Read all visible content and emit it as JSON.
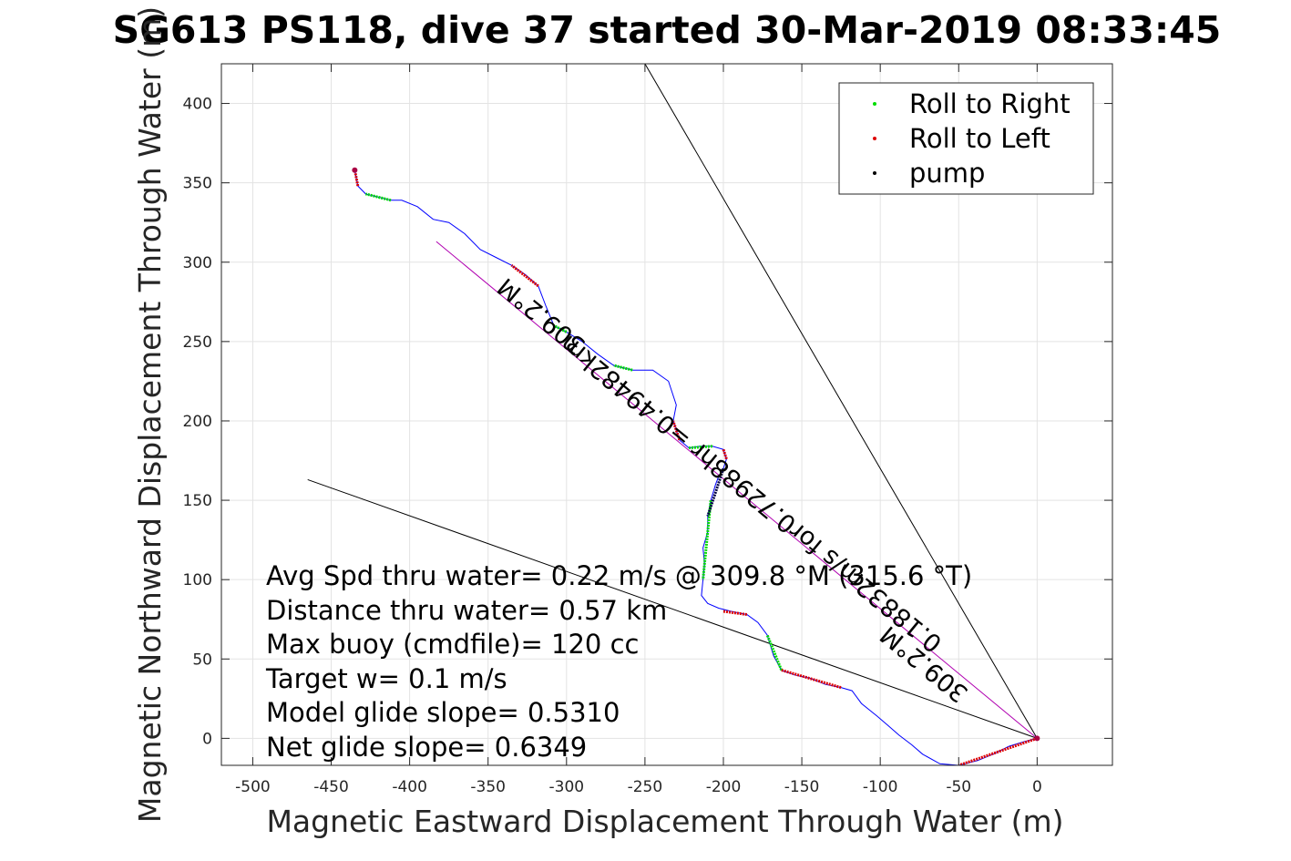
{
  "chart_data": {
    "type": "line",
    "title": "SG613 PS118, dive 37 started 30-Mar-2019 08:33:45",
    "xlabel": "Magnetic Eastward Displacement Through Water (m)",
    "ylabel": "Magnetic Northward Displacement Through Water (m)",
    "xlim": [
      -520,
      48
    ],
    "ylim": [
      -17,
      425
    ],
    "xticks": [
      -500,
      -450,
      -400,
      -350,
      -300,
      -250,
      -200,
      -150,
      -100,
      -50,
      0
    ],
    "yticks": [
      0,
      50,
      100,
      150,
      200,
      250,
      300,
      350,
      400
    ],
    "grid": true,
    "legend_placement": "top-right",
    "legend": [
      {
        "label": "Roll to Right",
        "color": "#00dd00"
      },
      {
        "label": "Roll to Left",
        "color": "#dd0000"
      },
      {
        "label": "pump",
        "color": "#000000"
      }
    ],
    "track": [
      [
        0,
        0
      ],
      [
        -8,
        -2
      ],
      [
        -18,
        -5
      ],
      [
        -28,
        -10
      ],
      [
        -38,
        -14
      ],
      [
        -50,
        -17
      ],
      [
        -62,
        -16
      ],
      [
        -73,
        -10
      ],
      [
        -80,
        -4
      ],
      [
        -88,
        2
      ],
      [
        -95,
        8
      ],
      [
        -102,
        14
      ],
      [
        -112,
        22
      ],
      [
        -118,
        30
      ],
      [
        -125,
        32
      ],
      [
        -135,
        34
      ],
      [
        -145,
        38
      ],
      [
        -155,
        40
      ],
      [
        -163,
        43
      ],
      [
        -168,
        52
      ],
      [
        -172,
        65
      ],
      [
        -178,
        73
      ],
      [
        -185,
        78
      ],
      [
        -195,
        80
      ],
      [
        -203,
        82
      ],
      [
        -210,
        85
      ],
      [
        -214,
        90
      ],
      [
        -213,
        100
      ],
      [
        -212,
        110
      ],
      [
        -213,
        120
      ],
      [
        -210,
        130
      ],
      [
        -210,
        140
      ],
      [
        -208,
        150
      ],
      [
        -205,
        160
      ],
      [
        -203,
        165
      ],
      [
        -200,
        170
      ],
      [
        -198,
        176
      ],
      [
        -200,
        182
      ],
      [
        -207,
        184
      ],
      [
        -215,
        184
      ],
      [
        -222,
        183
      ],
      [
        -228,
        188
      ],
      [
        -232,
        200
      ],
      [
        -230,
        210
      ],
      [
        -235,
        225
      ],
      [
        -245,
        232
      ],
      [
        -258,
        232
      ],
      [
        -270,
        235
      ],
      [
        -280,
        242
      ],
      [
        -290,
        250
      ],
      [
        -300,
        256
      ],
      [
        -308,
        260
      ],
      [
        -313,
        272
      ],
      [
        -318,
        285
      ],
      [
        -326,
        292
      ],
      [
        -335,
        298
      ],
      [
        -345,
        303
      ],
      [
        -355,
        308
      ],
      [
        -365,
        318
      ],
      [
        -375,
        325
      ],
      [
        -385,
        327
      ],
      [
        -395,
        335
      ],
      [
        -405,
        339
      ],
      [
        -412,
        339
      ],
      [
        -420,
        341
      ],
      [
        -428,
        343
      ],
      [
        -433,
        348
      ],
      [
        -435,
        358
      ]
    ],
    "roll_right_segments": [
      [
        [
          -412,
          339
        ],
        [
          -428,
          343
        ]
      ],
      [
        [
          -300,
          256
        ],
        [
          -308,
          260
        ]
      ],
      [
        [
          -258,
          232
        ],
        [
          -270,
          235
        ]
      ],
      [
        [
          -207,
          184
        ],
        [
          -222,
          183
        ]
      ],
      [
        [
          -208,
          150
        ],
        [
          -213,
          100
        ]
      ],
      [
        [
          -163,
          43
        ],
        [
          -172,
          65
        ]
      ]
    ],
    "roll_left_segments": [
      [
        [
          0,
          0
        ],
        [
          -50,
          -17
        ]
      ],
      [
        [
          -125,
          32
        ],
        [
          -163,
          43
        ]
      ],
      [
        [
          -185,
          78
        ],
        [
          -200,
          80
        ]
      ],
      [
        [
          -198,
          176
        ],
        [
          -200,
          182
        ]
      ],
      [
        [
          -228,
          188
        ],
        [
          -232,
          200
        ]
      ],
      [
        [
          -318,
          285
        ],
        [
          -335,
          298
        ]
      ],
      [
        [
          -433,
          348
        ],
        [
          -435,
          358
        ]
      ]
    ],
    "pump_segments": [
      [
        [
          -200,
          170
        ],
        [
          -210,
          140
        ]
      ]
    ],
    "reference_lines": [
      {
        "from": [
          0,
          0
        ],
        "to": [
          -250,
          425
        ],
        "color": "#000000"
      },
      {
        "from": [
          0,
          0
        ],
        "to": [
          -465,
          163
        ],
        "color": "#000000"
      },
      {
        "from": [
          0,
          0
        ],
        "to": [
          -383,
          313
        ],
        "color": "#b000b0"
      }
    ],
    "annotations": [
      "Avg Spd thru water=  0.22 m/s @ 309.8 °M (315.6 °T)",
      "Distance thru water=  0.57 km",
      "Max buoy (cmdfile)= 120 cc",
      "Target w= 0.1 m/s",
      "Model glide slope= 0.5310",
      "Net glide slope= 0.6349"
    ],
    "rotated_labels": [
      "309.2°M",
      "0.18832m/s for0.72988hr =0.49482km",
      "309.2°M"
    ]
  }
}
